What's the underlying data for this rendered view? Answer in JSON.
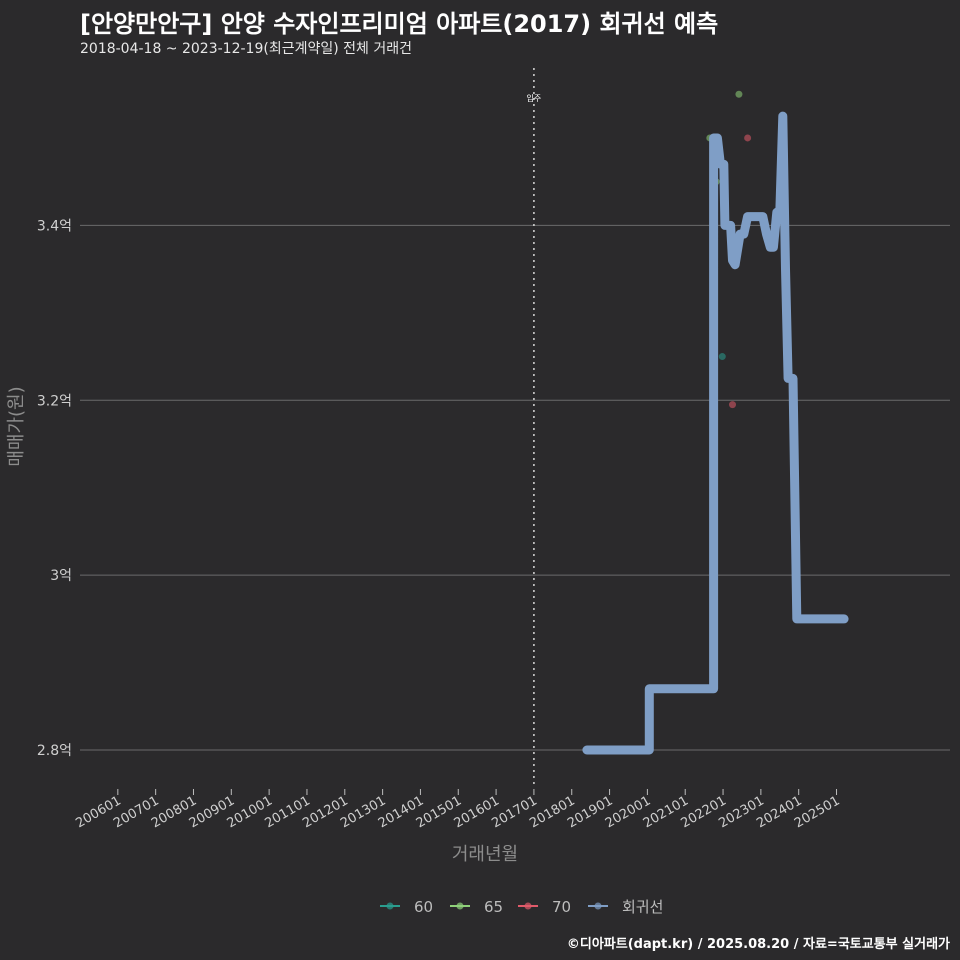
{
  "title": "[안양만안구] 안양 수자인프리미엄 아파트(2017) 회귀선 예측",
  "subtitle": "2018-04-18 ~ 2023-12-19(최근계약일) 전체 거래건",
  "footer": "©디아파트(dapt.kr) / 2025.08.20 / 자료=국토교통부 실거래가",
  "chart_data": {
    "type": "line",
    "xlabel": "거래년월",
    "ylabel": "매매가(원)",
    "ylim": [
      2.76,
      3.58
    ],
    "xlim": [
      2005.0,
      2028.0
    ],
    "x_ticks": [
      "200601",
      "200701",
      "200801",
      "200901",
      "201001",
      "201101",
      "201201",
      "201301",
      "201401",
      "201501",
      "201601",
      "201701",
      "201801",
      "201901",
      "202001",
      "202101",
      "202201",
      "202301",
      "202401",
      "202501"
    ],
    "x_tick_values": [
      2006,
      2007,
      2008,
      2009,
      2010,
      2011,
      2012,
      2013,
      2014,
      2015,
      2016,
      2017,
      2018,
      2019,
      2020,
      2021,
      2022,
      2023,
      2024,
      2025
    ],
    "y_ticks": [
      {
        "value": 2.8,
        "label": "2.8억"
      },
      {
        "value": 3.0,
        "label": "3억"
      },
      {
        "value": 3.2,
        "label": "3.2억"
      },
      {
        "value": 3.4,
        "label": "3.4억"
      }
    ],
    "annotation": {
      "x": 2017.0,
      "label": "입주"
    },
    "series": [
      {
        "name": "60",
        "color": "#2a9d8f",
        "type": "scatter",
        "points": [
          [
            2021.98,
            3.25
          ]
        ]
      },
      {
        "name": "65",
        "color": "#8fd17a",
        "type": "scatter",
        "points": [
          [
            2021.65,
            3.5
          ],
          [
            2021.82,
            3.45
          ],
          [
            2022.42,
            3.55
          ]
        ]
      },
      {
        "name": "70",
        "color": "#e05a6a",
        "type": "scatter",
        "points": [
          [
            2022.25,
            3.195
          ],
          [
            2022.65,
            3.5
          ]
        ]
      },
      {
        "name": "회귀선",
        "color": "#7f9ec6",
        "type": "line",
        "points": [
          [
            2018.4,
            2.8
          ],
          [
            2020.05,
            2.8
          ],
          [
            2020.05,
            2.87
          ],
          [
            2021.75,
            2.87
          ],
          [
            2021.75,
            3.5
          ],
          [
            2021.85,
            3.5
          ],
          [
            2021.93,
            3.47
          ],
          [
            2022.02,
            3.47
          ],
          [
            2022.05,
            3.4
          ],
          [
            2022.2,
            3.4
          ],
          [
            2022.25,
            3.36
          ],
          [
            2022.32,
            3.355
          ],
          [
            2022.45,
            3.39
          ],
          [
            2022.55,
            3.39
          ],
          [
            2022.65,
            3.41
          ],
          [
            2023.05,
            3.41
          ],
          [
            2023.15,
            3.39
          ],
          [
            2023.25,
            3.375
          ],
          [
            2023.33,
            3.375
          ],
          [
            2023.42,
            3.415
          ],
          [
            2023.5,
            3.415
          ],
          [
            2023.58,
            3.525
          ],
          [
            2023.65,
            3.35
          ],
          [
            2023.72,
            3.225
          ],
          [
            2023.85,
            3.225
          ],
          [
            2023.95,
            2.95
          ],
          [
            2025.2,
            2.95
          ]
        ]
      }
    ],
    "legend": [
      "60",
      "65",
      "70",
      "회귀선"
    ]
  }
}
